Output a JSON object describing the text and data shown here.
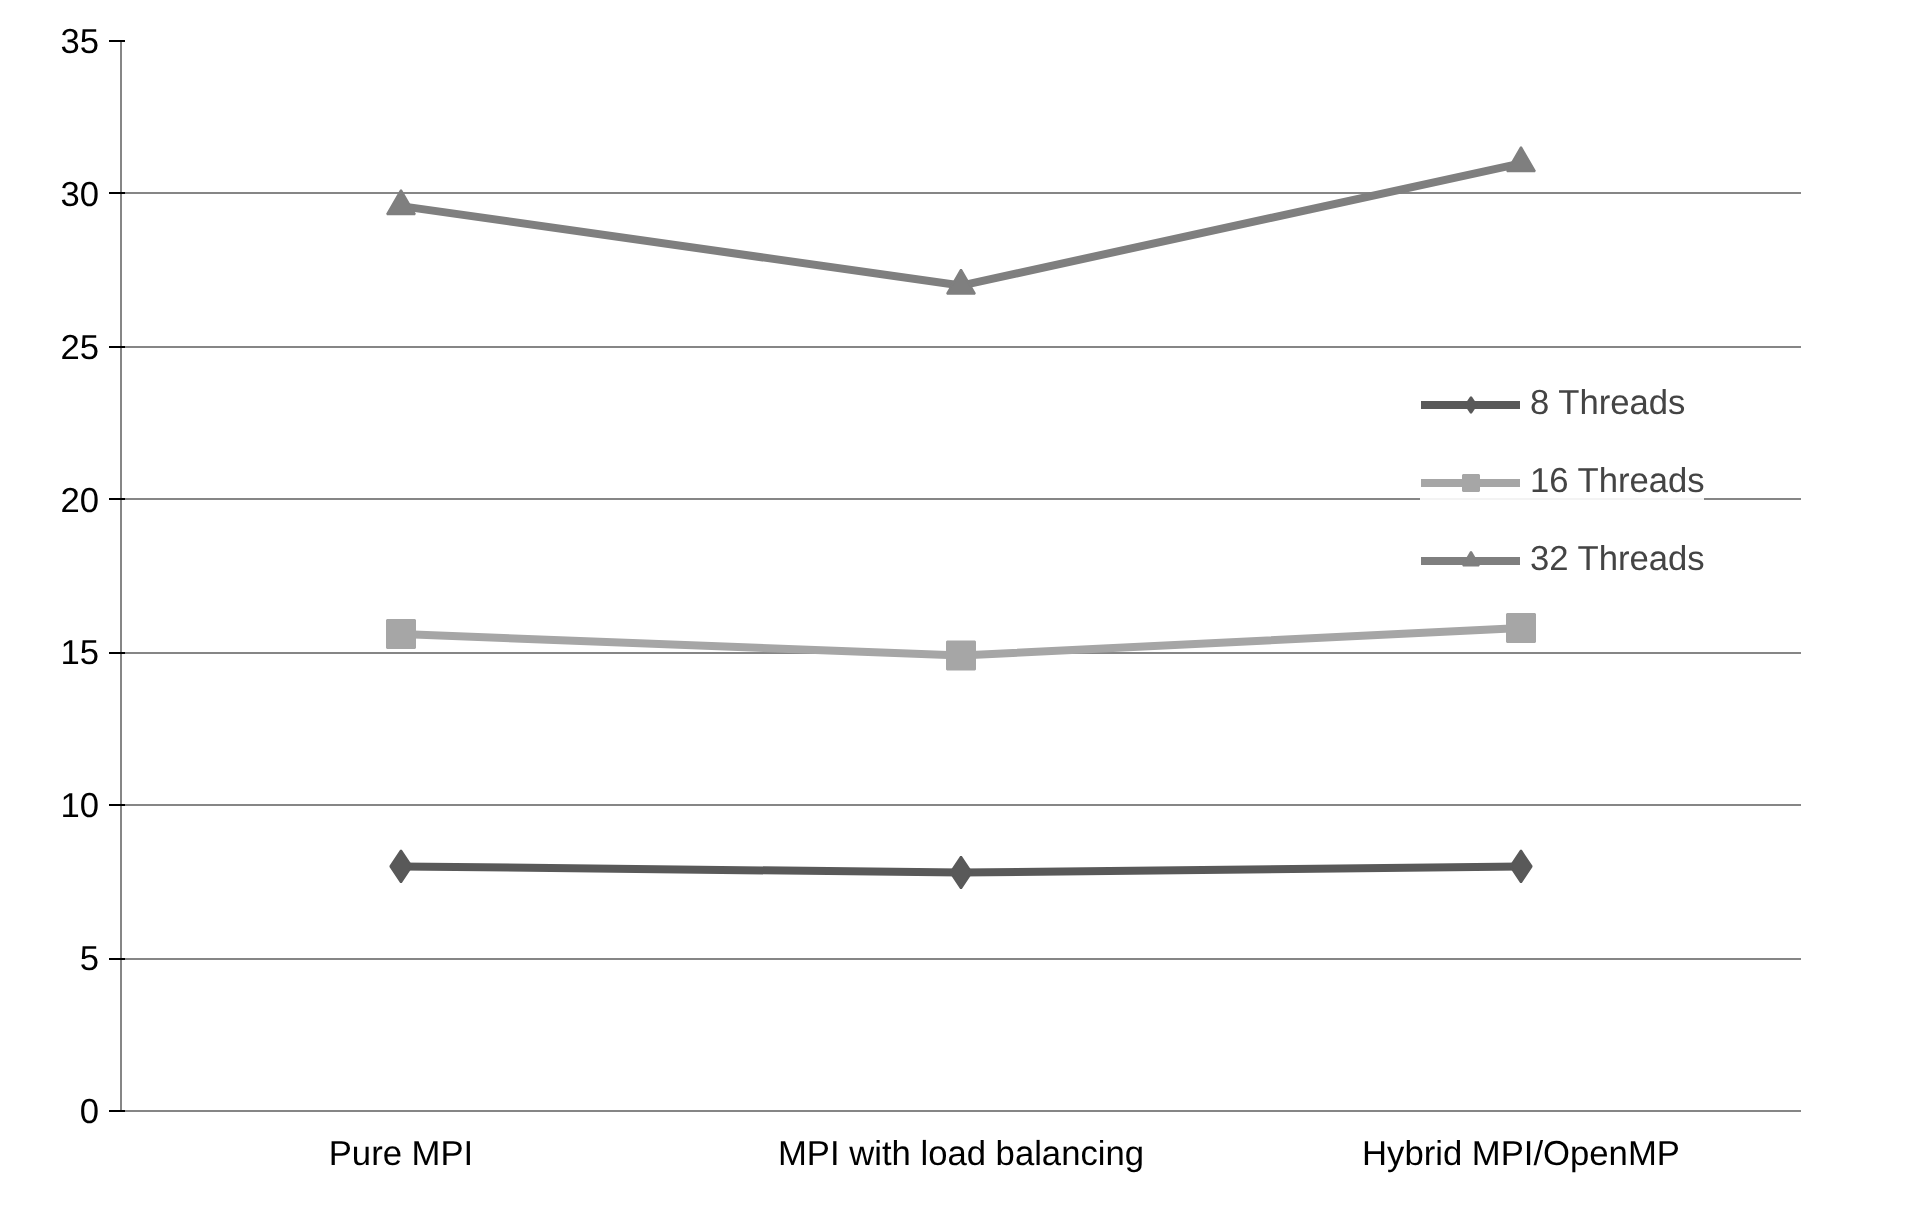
{
  "chart_data": {
    "type": "line",
    "categories": [
      "Pure MPI",
      "MPI with load balancing",
      "Hybrid MPI/OpenMP"
    ],
    "series": [
      {
        "name": "8 Threads",
        "color": "#595959",
        "marker": "diamond",
        "values": [
          8.0,
          7.8,
          8.0
        ]
      },
      {
        "name": "16 Threads",
        "color": "#a6a6a6",
        "marker": "square",
        "values": [
          15.6,
          14.9,
          15.8
        ]
      },
      {
        "name": "32 Threads",
        "color": "#7f7f7f",
        "marker": "triangle",
        "values": [
          29.6,
          27.0,
          31.0
        ]
      }
    ],
    "ylim": [
      0,
      35
    ],
    "yticks": [
      0,
      5,
      10,
      15,
      20,
      25,
      30,
      35
    ],
    "grid": "y",
    "legend": "right",
    "line_style": "solid"
  }
}
